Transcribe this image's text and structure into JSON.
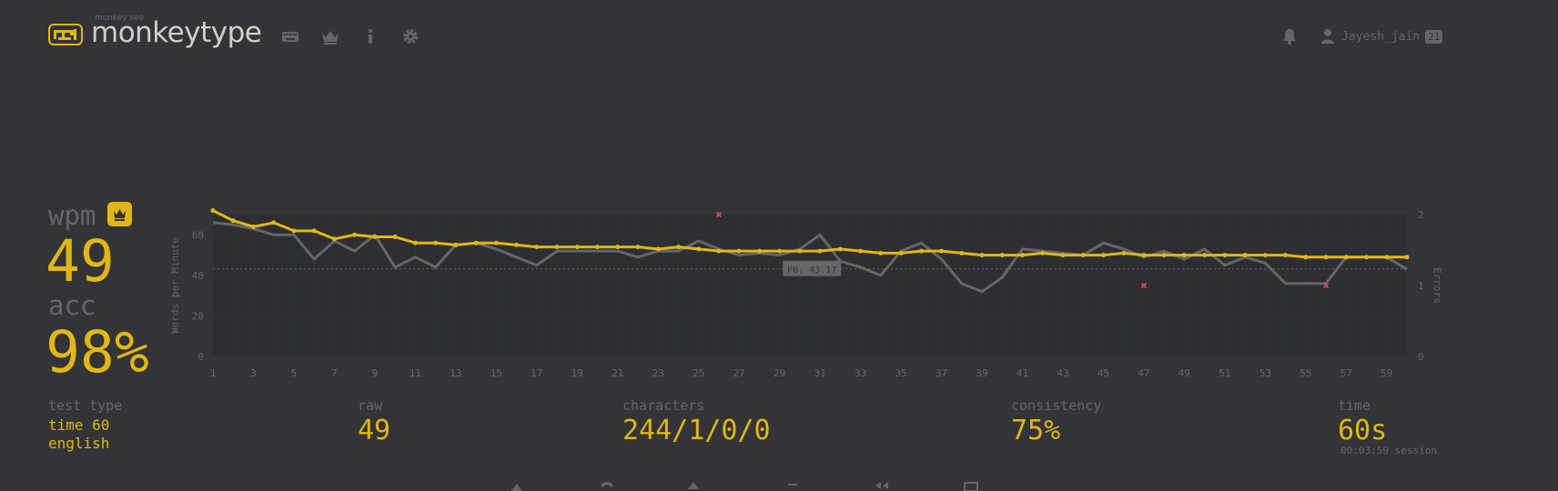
{
  "header": {
    "logo_small": "monkey see",
    "logo_text": "monkeytype",
    "username": "Jayesh_jain",
    "level": "21"
  },
  "colors": {
    "background": "#323437",
    "accent": "#e2b714",
    "sub": "#646669",
    "text": "#d1d0c5",
    "error": "#ca4754"
  },
  "nav": [
    "keyboard-icon",
    "crown-icon",
    "info-icon",
    "gear-icon"
  ],
  "stats": {
    "wpm_label": "wpm",
    "wpm": "49",
    "acc_label": "acc",
    "acc": "98%",
    "test_type_label": "test type",
    "test_type_line1": "time 60",
    "test_type_line2": "english",
    "raw_label": "raw",
    "raw": "49",
    "characters_label": "characters",
    "characters": "244/1/0/0",
    "consistency_label": "consistency",
    "consistency": "75%",
    "time_label": "time",
    "time": "60s",
    "session": "00:03:59 session"
  },
  "chart_data": {
    "type": "line",
    "ylabel": "Words per Minute",
    "y2label": "Errors",
    "ylim": [
      0,
      70
    ],
    "y2lim": [
      0,
      2
    ],
    "yticks": [
      0,
      20,
      40,
      60
    ],
    "y2ticks": [
      0,
      1,
      2
    ],
    "xticks": [
      1,
      3,
      5,
      7,
      9,
      11,
      13,
      15,
      17,
      19,
      21,
      23,
      25,
      27,
      29,
      31,
      33,
      35,
      37,
      39,
      41,
      43,
      45,
      47,
      49,
      51,
      53,
      55,
      57,
      59
    ],
    "pb_label": "PB: 43.17",
    "pb_value": 43.17,
    "x": [
      1,
      2,
      3,
      4,
      5,
      6,
      7,
      8,
      9,
      10,
      11,
      12,
      13,
      14,
      15,
      16,
      17,
      18,
      19,
      20,
      21,
      22,
      23,
      24,
      25,
      26,
      27,
      28,
      29,
      30,
      31,
      32,
      33,
      34,
      35,
      36,
      37,
      38,
      39,
      40,
      41,
      42,
      43,
      44,
      45,
      46,
      47,
      48,
      49,
      50,
      51,
      52,
      53,
      54,
      55,
      56,
      57,
      58,
      59,
      60
    ],
    "series": [
      {
        "name": "wpm",
        "color": "#e2b714",
        "values": [
          72,
          67,
          64,
          66,
          62,
          62,
          58,
          60,
          59,
          59,
          56,
          56,
          55,
          56,
          56,
          55,
          54,
          54,
          54,
          54,
          54,
          54,
          53,
          54,
          53,
          52,
          52,
          52,
          52,
          52,
          52,
          53,
          52,
          51,
          51,
          52,
          52,
          51,
          50,
          50,
          50,
          51,
          50,
          50,
          50,
          51,
          50,
          50,
          50,
          50,
          50,
          50,
          50,
          50,
          49,
          49,
          49,
          49,
          49,
          49
        ]
      },
      {
        "name": "raw",
        "color": "#646669",
        "values": [
          66,
          65,
          63,
          60,
          60,
          48,
          57,
          52,
          60,
          44,
          49,
          44,
          55,
          56,
          53,
          49,
          45,
          52,
          52,
          52,
          52,
          49,
          52,
          52,
          57,
          53,
          50,
          51,
          50,
          53,
          60,
          47,
          44,
          40,
          52,
          56,
          48,
          36,
          32,
          39,
          53,
          52,
          51,
          50,
          56,
          53,
          49,
          52,
          48,
          53,
          45,
          49,
          46,
          36,
          36,
          36,
          49,
          49,
          49,
          43
        ]
      },
      {
        "name": "errors",
        "color": "#ca4754",
        "points": [
          [
            26,
            2
          ],
          [
            47,
            1
          ],
          [
            56,
            1
          ]
        ]
      }
    ]
  }
}
